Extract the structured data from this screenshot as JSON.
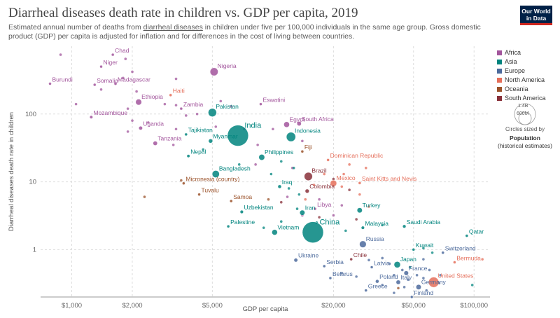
{
  "header": {
    "title": "Diarrheal diseases death rate in children vs. GDP per capita, 2019",
    "subtitle_before": "Estimated annual number of deaths from ",
    "subtitle_link": "diarrheal diseases",
    "subtitle_after": " in children under five per 100,000 individuals in the same age group. Gross domestic product (GDP) per capita is adjusted for inflation and for differences in the cost of living between countries.",
    "logo_line1": "Our World",
    "logo_line2": "in Data"
  },
  "size_legend": {
    "bubble_large": "1.4B",
    "bubble_small": "600M",
    "note": "Circles sized by",
    "title": "Population",
    "sub": "(historical estimates)"
  },
  "chart_data": {
    "type": "scatter",
    "title": "Diarrheal diseases death rate in children vs. GDP per capita, 2019",
    "xlabel": "GDP per capita",
    "ylabel": "Diarrheal diseases death rate in children",
    "x_scale": "log",
    "y_scale": "log",
    "xlim": [
      700,
      120000
    ],
    "ylim": [
      0.2,
      1000
    ],
    "x_ticks": [
      {
        "v": 1000,
        "label": "$1,000"
      },
      {
        "v": 2000,
        "label": "$2,000"
      },
      {
        "v": 5000,
        "label": "$5,000"
      },
      {
        "v": 20000,
        "label": "$20,000"
      },
      {
        "v": 50000,
        "label": "$50,000"
      },
      {
        "v": 100000,
        "label": "$100,000"
      }
    ],
    "y_ticks": [
      {
        "v": 1,
        "label": "1"
      },
      {
        "v": 10,
        "label": "10"
      },
      {
        "v": 100,
        "label": "100"
      }
    ],
    "grid": true,
    "legend_position": "right",
    "regions": [
      {
        "name": "Africa",
        "color": "#a2559c"
      },
      {
        "name": "Asia",
        "color": "#00847e"
      },
      {
        "name": "Europe",
        "color": "#4c6a9c"
      },
      {
        "name": "North America",
        "color": "#e56e5a"
      },
      {
        "name": "Oceania",
        "color": "#9a5129"
      },
      {
        "name": "South America",
        "color": "#883039"
      }
    ],
    "labeled_points": [
      {
        "name": "Chad",
        "x": 1600,
        "y": 750,
        "region": "Africa",
        "pop": 16
      },
      {
        "name": "Niger",
        "x": 1400,
        "y": 500,
        "region": "Africa",
        "pop": 23
      },
      {
        "name": "Nigeria",
        "x": 5100,
        "y": 420,
        "region": "Africa",
        "pop": 201
      },
      {
        "name": "Burundi",
        "x": 780,
        "y": 280,
        "region": "Africa",
        "pop": 12
      },
      {
        "name": "Somalia",
        "x": 1300,
        "y": 270,
        "region": "Africa",
        "pop": 15
      },
      {
        "name": "Madagascar",
        "x": 1650,
        "y": 280,
        "region": "Africa",
        "pop": 27
      },
      {
        "name": "Haiti",
        "x": 3100,
        "y": 190,
        "region": "North America",
        "pop": 11
      },
      {
        "name": "Ethiopia",
        "x": 2150,
        "y": 150,
        "region": "Africa",
        "pop": 112
      },
      {
        "name": "Zambia",
        "x": 3500,
        "y": 120,
        "region": "Africa",
        "pop": 18
      },
      {
        "name": "Eswatini",
        "x": 8700,
        "y": 140,
        "region": "Africa",
        "pop": 1
      },
      {
        "name": "Pakistan",
        "x": 5000,
        "y": 105,
        "region": "Asia",
        "pop": 217
      },
      {
        "name": "Mozambique",
        "x": 1250,
        "y": 90,
        "region": "Africa",
        "pop": 30
      },
      {
        "name": "Egypt",
        "x": 11700,
        "y": 70,
        "region": "Africa",
        "pop": 100
      },
      {
        "name": "South Africa",
        "x": 13500,
        "y": 72,
        "region": "Africa",
        "pop": 58
      },
      {
        "name": "Uganda",
        "x": 2200,
        "y": 62,
        "region": "Africa",
        "pop": 44
      },
      {
        "name": "India",
        "x": 6700,
        "y": 48,
        "region": "Asia",
        "pop": 1380
      },
      {
        "name": "Tajikistan",
        "x": 3700,
        "y": 50,
        "region": "Asia",
        "pop": 9
      },
      {
        "name": "Indonesia",
        "x": 12300,
        "y": 46,
        "region": "Asia",
        "pop": 270
      },
      {
        "name": "Myanmar",
        "x": 4900,
        "y": 40,
        "region": "Asia",
        "pop": 54
      },
      {
        "name": "Tanzania",
        "x": 2600,
        "y": 37,
        "region": "Africa",
        "pop": 58
      },
      {
        "name": "Fiji",
        "x": 14000,
        "y": 28,
        "region": "Oceania",
        "pop": 1
      },
      {
        "name": "Nepal",
        "x": 3800,
        "y": 24,
        "region": "Asia",
        "pop": 29
      },
      {
        "name": "Philippines",
        "x": 8800,
        "y": 23,
        "region": "Asia",
        "pop": 108
      },
      {
        "name": "Dominican Republic",
        "x": 18800,
        "y": 21,
        "region": "North America",
        "pop": 11
      },
      {
        "name": "Bangladesh",
        "x": 5200,
        "y": 13,
        "region": "Asia",
        "pop": 163
      },
      {
        "name": "Brazil",
        "x": 15000,
        "y": 12,
        "region": "South America",
        "pop": 211
      },
      {
        "name": "Mexico",
        "x": 20000,
        "y": 9.5,
        "region": "North America",
        "pop": 128
      },
      {
        "name": "Saint Kitts and Nevis",
        "x": 27000,
        "y": 9.6,
        "region": "North America",
        "pop": 0.05
      },
      {
        "name": "Micronesia (country)",
        "x": 3600,
        "y": 9.5,
        "region": "Oceania",
        "pop": 0.1
      },
      {
        "name": "Iraq",
        "x": 10800,
        "y": 8.5,
        "region": "Asia",
        "pop": 39
      },
      {
        "name": "Colombia",
        "x": 14800,
        "y": 7.3,
        "region": "South America",
        "pop": 50
      },
      {
        "name": "Tuvalu",
        "x": 4300,
        "y": 6.5,
        "region": "Oceania",
        "pop": 0.01
      },
      {
        "name": "Samoa",
        "x": 6200,
        "y": 5.2,
        "region": "Oceania",
        "pop": 0.2
      },
      {
        "name": "Libya",
        "x": 16200,
        "y": 4,
        "region": "Africa",
        "pop": 7
      },
      {
        "name": "Turkey",
        "x": 27000,
        "y": 3.8,
        "region": "Asia",
        "pop": 83
      },
      {
        "name": "Uzbekistan",
        "x": 7000,
        "y": 3.6,
        "region": "Asia",
        "pop": 34
      },
      {
        "name": "Iran",
        "x": 14000,
        "y": 3.5,
        "region": "Asia",
        "pop": 83
      },
      {
        "name": "China",
        "x": 15800,
        "y": 1.8,
        "region": "Asia",
        "pop": 1400
      },
      {
        "name": "Saudi Arabia",
        "x": 45000,
        "y": 2.2,
        "region": "Asia",
        "pop": 34
      },
      {
        "name": "Malaysia",
        "x": 28000,
        "y": 2.1,
        "region": "Asia",
        "pop": 32
      },
      {
        "name": "Palestine",
        "x": 6000,
        "y": 2.2,
        "region": "Asia",
        "pop": 5
      },
      {
        "name": "Vietnam",
        "x": 10200,
        "y": 1.8,
        "region": "Asia",
        "pop": 96
      },
      {
        "name": "Qatar",
        "x": 92000,
        "y": 1.6,
        "region": "Asia",
        "pop": 2.8
      },
      {
        "name": "Russia",
        "x": 28000,
        "y": 1.2,
        "region": "Europe",
        "pop": 144
      },
      {
        "name": "Kuwait",
        "x": 50000,
        "y": 1.0,
        "region": "Asia",
        "pop": 4.3
      },
      {
        "name": "Switzerland",
        "x": 70000,
        "y": 0.9,
        "region": "Europe",
        "pop": 8.6
      },
      {
        "name": "Ukraine",
        "x": 13000,
        "y": 0.7,
        "region": "Europe",
        "pop": 44
      },
      {
        "name": "Chile",
        "x": 24500,
        "y": 0.72,
        "region": "South America",
        "pop": 19
      },
      {
        "name": "Japan",
        "x": 41500,
        "y": 0.6,
        "region": "Asia",
        "pop": 126
      },
      {
        "name": "Bermuda",
        "x": 80000,
        "y": 0.65,
        "region": "North America",
        "pop": 0.06
      },
      {
        "name": "Serbia",
        "x": 18000,
        "y": 0.57,
        "region": "Europe",
        "pop": 7
      },
      {
        "name": "Latvia",
        "x": 31000,
        "y": 0.55,
        "region": "Europe",
        "pop": 1.9
      },
      {
        "name": "France",
        "x": 46000,
        "y": 0.45,
        "region": "Europe",
        "pop": 65
      },
      {
        "name": "United States",
        "x": 63000,
        "y": 0.33,
        "region": "North America",
        "pop": 330
      },
      {
        "name": "Belarus",
        "x": 19300,
        "y": 0.38,
        "region": "Europe",
        "pop": 9.4
      },
      {
        "name": "Poland",
        "x": 33000,
        "y": 0.34,
        "region": "Europe",
        "pop": 38
      },
      {
        "name": "Italy",
        "x": 42000,
        "y": 0.33,
        "region": "Europe",
        "pop": 60
      },
      {
        "name": "Germany",
        "x": 53000,
        "y": 0.28,
        "region": "Europe",
        "pop": 83
      },
      {
        "name": "Greece",
        "x": 29000,
        "y": 0.25,
        "region": "Europe",
        "pop": 10.7
      },
      {
        "name": "Finland",
        "x": 49000,
        "y": 0.2,
        "region": "Europe",
        "pop": 5.5
      }
    ],
    "unlabeled_points": [
      {
        "x": 880,
        "y": 750,
        "region": "Africa"
      },
      {
        "x": 1850,
        "y": 650,
        "region": "Africa"
      },
      {
        "x": 2000,
        "y": 420,
        "region": "Africa"
      },
      {
        "x": 1800,
        "y": 340,
        "region": "Africa"
      },
      {
        "x": 3300,
        "y": 330,
        "region": "Africa"
      },
      {
        "x": 1050,
        "y": 140,
        "region": "Africa"
      },
      {
        "x": 1400,
        "y": 230,
        "region": "Africa"
      },
      {
        "x": 2100,
        "y": 215,
        "region": "Africa"
      },
      {
        "x": 1900,
        "y": 120,
        "region": "Africa"
      },
      {
        "x": 2900,
        "y": 140,
        "region": "Africa"
      },
      {
        "x": 3300,
        "y": 135,
        "region": "Africa"
      },
      {
        "x": 3700,
        "y": 95,
        "region": "Africa"
      },
      {
        "x": 4200,
        "y": 100,
        "region": "Africa"
      },
      {
        "x": 5500,
        "y": 155,
        "region": "Africa"
      },
      {
        "x": 6200,
        "y": 130,
        "region": "Africa"
      },
      {
        "x": 2000,
        "y": 80,
        "region": "Africa"
      },
      {
        "x": 1900,
        "y": 55,
        "region": "Africa"
      },
      {
        "x": 2400,
        "y": 75,
        "region": "Africa"
      },
      {
        "x": 3300,
        "y": 60,
        "region": "Africa"
      },
      {
        "x": 5200,
        "y": 65,
        "region": "Africa"
      },
      {
        "x": 7200,
        "y": 60,
        "region": "Africa"
      },
      {
        "x": 10000,
        "y": 60,
        "region": "Africa"
      },
      {
        "x": 3200,
        "y": 35,
        "region": "Africa"
      },
      {
        "x": 8400,
        "y": 35,
        "region": "Africa"
      },
      {
        "x": 14000,
        "y": 40,
        "region": "Africa"
      },
      {
        "x": 8200,
        "y": 18,
        "region": "Africa"
      },
      {
        "x": 12500,
        "y": 16,
        "region": "Africa"
      },
      {
        "x": 14000,
        "y": 3.2,
        "region": "Africa"
      },
      {
        "x": 17000,
        "y": 5.5,
        "region": "Africa"
      },
      {
        "x": 22000,
        "y": 4.5,
        "region": "Africa"
      },
      {
        "x": 20000,
        "y": 3.2,
        "region": "Africa"
      },
      {
        "x": 11800,
        "y": 6,
        "region": "Africa"
      },
      {
        "x": 4500,
        "y": 30,
        "region": "Asia"
      },
      {
        "x": 6800,
        "y": 18,
        "region": "Asia"
      },
      {
        "x": 11000,
        "y": 20,
        "region": "Asia"
      },
      {
        "x": 9800,
        "y": 13,
        "region": "Asia"
      },
      {
        "x": 12700,
        "y": 16,
        "region": "Asia"
      },
      {
        "x": 13500,
        "y": 6.5,
        "region": "Asia"
      },
      {
        "x": 12000,
        "y": 8,
        "region": "Asia"
      },
      {
        "x": 13200,
        "y": 4,
        "region": "Asia"
      },
      {
        "x": 16500,
        "y": 2.5,
        "region": "Asia"
      },
      {
        "x": 23000,
        "y": 1.9,
        "region": "Asia"
      },
      {
        "x": 35000,
        "y": 2.3,
        "region": "Asia"
      },
      {
        "x": 11000,
        "y": 2.6,
        "region": "Asia"
      },
      {
        "x": 9000,
        "y": 2.1,
        "region": "Asia"
      },
      {
        "x": 48000,
        "y": 0.55,
        "region": "Asia"
      },
      {
        "x": 62000,
        "y": 0.9,
        "region": "Asia"
      },
      {
        "x": 56000,
        "y": 1.05,
        "region": "Asia"
      },
      {
        "x": 98000,
        "y": 0.3,
        "region": "Asia"
      },
      {
        "x": 24000,
        "y": 18,
        "region": "North America"
      },
      {
        "x": 18000,
        "y": 13,
        "region": "North America"
      },
      {
        "x": 22500,
        "y": 13,
        "region": "North America"
      },
      {
        "x": 29000,
        "y": 16,
        "region": "North America"
      },
      {
        "x": 16000,
        "y": 9,
        "region": "North America"
      },
      {
        "x": 14500,
        "y": 5.5,
        "region": "North America"
      },
      {
        "x": 22000,
        "y": 8.5,
        "region": "North America"
      },
      {
        "x": 27000,
        "y": 6.5,
        "region": "North America"
      },
      {
        "x": 30000,
        "y": 4.3,
        "region": "North America"
      },
      {
        "x": 110000,
        "y": 0.72,
        "region": "North America"
      },
      {
        "x": 20000,
        "y": 11,
        "region": "South America"
      },
      {
        "x": 24000,
        "y": 7.6,
        "region": "South America"
      },
      {
        "x": 26000,
        "y": 2.8,
        "region": "South America"
      },
      {
        "x": 17000,
        "y": 3,
        "region": "South America"
      },
      {
        "x": 11000,
        "y": 5,
        "region": "South America"
      },
      {
        "x": 30000,
        "y": 0.7,
        "region": "Europe"
      },
      {
        "x": 35000,
        "y": 0.75,
        "region": "Europe"
      },
      {
        "x": 38000,
        "y": 0.62,
        "region": "Europe"
      },
      {
        "x": 44000,
        "y": 0.5,
        "region": "Europe"
      },
      {
        "x": 52000,
        "y": 0.42,
        "region": "Europe"
      },
      {
        "x": 56000,
        "y": 0.38,
        "region": "Europe"
      },
      {
        "x": 47000,
        "y": 0.36,
        "region": "Europe"
      },
      {
        "x": 40000,
        "y": 0.42,
        "region": "Europe"
      },
      {
        "x": 35000,
        "y": 0.3,
        "region": "Europe"
      },
      {
        "x": 60000,
        "y": 0.5,
        "region": "Europe"
      },
      {
        "x": 68000,
        "y": 0.42,
        "region": "Europe"
      },
      {
        "x": 45000,
        "y": 0.28,
        "region": "Europe"
      },
      {
        "x": 58000,
        "y": 0.25,
        "region": "Europe"
      },
      {
        "x": 40000,
        "y": 0.23,
        "region": "Europe"
      },
      {
        "x": 22000,
        "y": 0.45,
        "region": "Europe"
      },
      {
        "x": 26000,
        "y": 0.4,
        "region": "Europe"
      },
      {
        "x": 56000,
        "y": 0.72,
        "region": "Europe"
      },
      {
        "x": 67000,
        "y": 0.32,
        "region": "Europe"
      },
      {
        "x": 2300,
        "y": 6,
        "region": "Oceania"
      },
      {
        "x": 3500,
        "y": 10.5,
        "region": "Oceania"
      },
      {
        "x": 9500,
        "y": 5.5,
        "region": "Oceania"
      },
      {
        "x": 42000,
        "y": 0.27,
        "region": "Oceania"
      }
    ]
  }
}
